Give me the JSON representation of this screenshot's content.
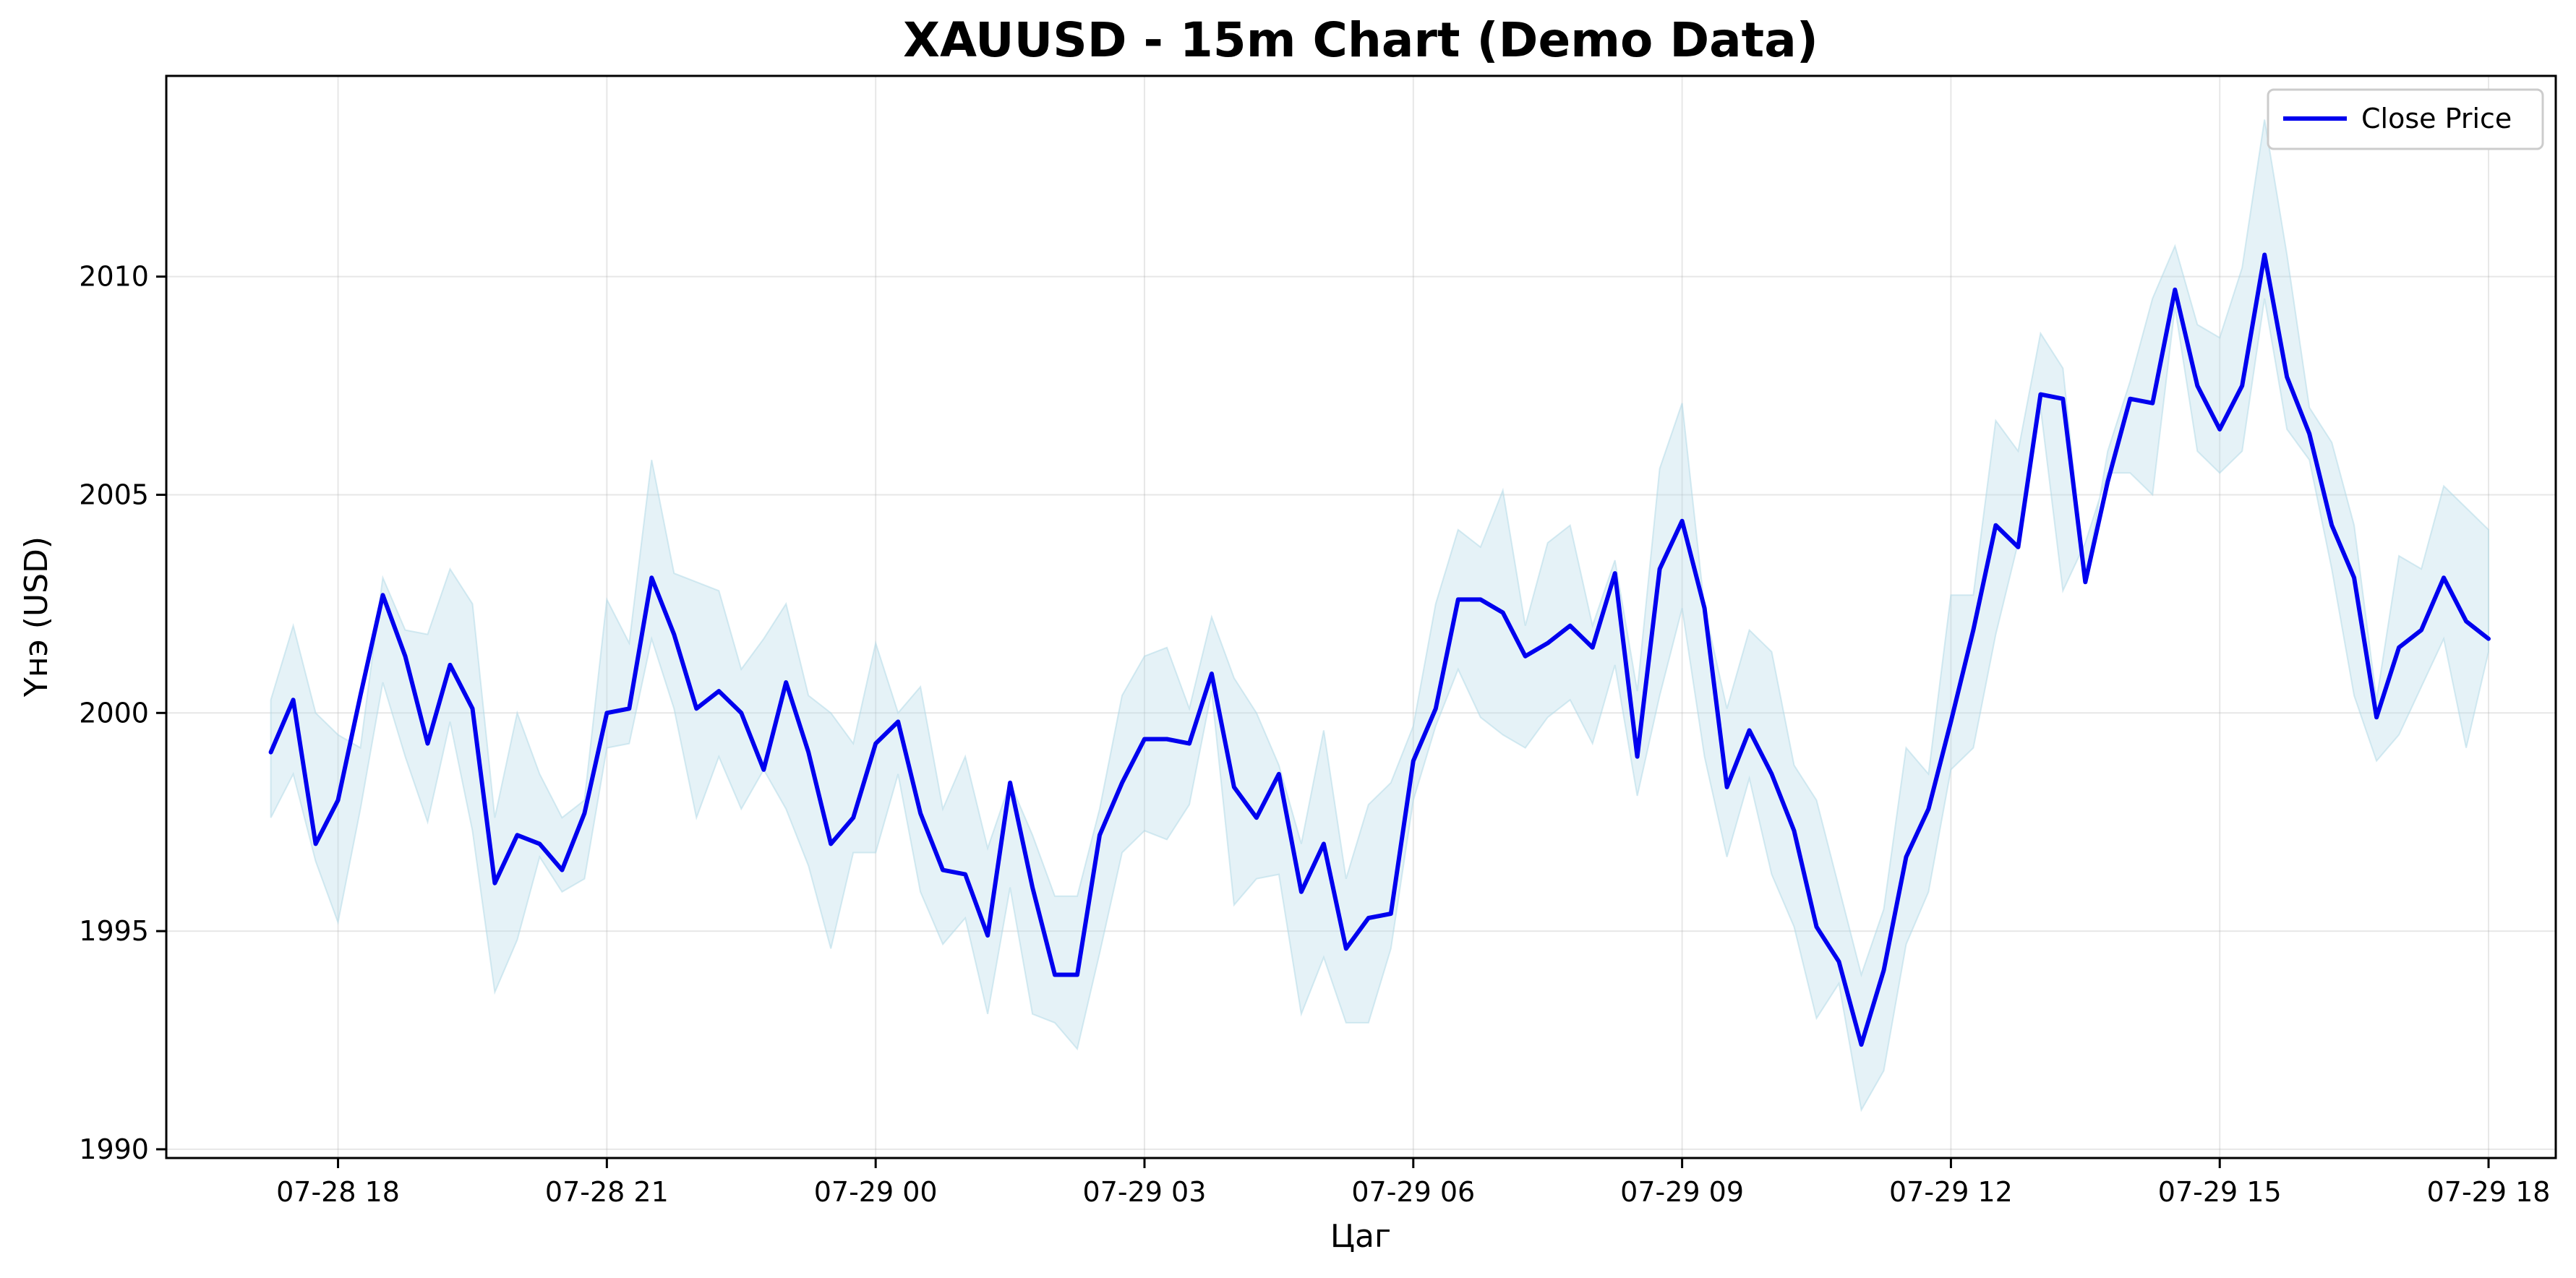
{
  "chart_data": {
    "type": "line",
    "title": "XAUUSD - 15m Chart (Demo Data)",
    "xlabel": "Цаг",
    "ylabel": "Үнэ (USD)",
    "x_ticks": [
      "07-28 18",
      "07-28 21",
      "07-29 00",
      "07-29 03",
      "07-29 06",
      "07-29 09",
      "07-29 12",
      "07-29 15",
      "07-29 18"
    ],
    "y_ticks": [
      "1990",
      "1995",
      "2000",
      "2005",
      "2010"
    ],
    "x_start": "2025-07-28 17:15",
    "x_interval_minutes": 15,
    "xlim": [
      "2025-07-28 16:05",
      "2025-07-29 18:45"
    ],
    "ylim": [
      1989.8,
      2014.6
    ],
    "grid": true,
    "legend": {
      "position": "upper right",
      "entries": [
        "Close Price"
      ]
    },
    "colors": {
      "line": "#0000ee",
      "band_fill": "#add8e6",
      "band_edge": "#add8e6"
    },
    "series": [
      {
        "name": "Close Price",
        "values": [
          1999.1,
          2000.3,
          1997.0,
          1998.0,
          2000.4,
          2002.7,
          2001.3,
          1999.3,
          2001.1,
          2000.1,
          1996.1,
          1997.2,
          1997.0,
          1996.4,
          1997.7,
          2000.0,
          2000.1,
          2003.1,
          2001.8,
          2000.1,
          2000.5,
          2000.0,
          1998.7,
          2000.7,
          1999.1,
          1997.0,
          1997.6,
          1999.3,
          1999.8,
          1997.7,
          1996.4,
          1996.3,
          1994.9,
          1998.4,
          1996.0,
          1994.0,
          1994.0,
          1997.2,
          1998.4,
          1999.4,
          1999.4,
          1999.3,
          2000.9,
          1998.3,
          1997.6,
          1998.6,
          1995.9,
          1997.0,
          1994.6,
          1995.3,
          1995.4,
          1998.9,
          2000.1,
          2002.6,
          2002.6,
          2002.3,
          2001.3,
          2001.6,
          2002.0,
          2001.5,
          2003.2,
          1999.0,
          2003.3,
          2004.4,
          2002.4,
          1998.3,
          1999.6,
          1998.6,
          1997.3,
          1995.1,
          1994.3,
          1992.4,
          1994.1,
          1996.7,
          1997.8,
          1999.8,
          2001.9,
          2004.3,
          2003.8,
          2007.3,
          2007.2,
          2003.0,
          2005.3,
          2007.2,
          2007.1,
          2009.7,
          2007.5,
          2006.5,
          2007.5,
          2010.5,
          2007.7,
          2006.4,
          2004.3,
          2003.1,
          1999.9,
          2001.5,
          2001.9,
          2003.1,
          2002.1,
          2001.7
        ]
      },
      {
        "name": "High",
        "values": [
          2000.3,
          2002.0,
          2000.0,
          1999.5,
          1999.2,
          2003.1,
          2001.9,
          2001.8,
          2003.3,
          2002.5,
          1997.6,
          2000.0,
          1998.6,
          1997.6,
          1998.0,
          2002.6,
          2001.6,
          2005.8,
          2003.2,
          2003.0,
          2002.8,
          2001.0,
          2001.7,
          2002.5,
          2000.4,
          2000.0,
          1999.3,
          2001.6,
          2000.0,
          2000.6,
          1997.8,
          1999.0,
          1996.9,
          1998.4,
          1997.2,
          1995.8,
          1995.8,
          1997.8,
          2000.4,
          2001.3,
          2001.5,
          2000.1,
          2002.2,
          2000.8,
          2000.0,
          1998.8,
          1997.0,
          1999.6,
          1996.2,
          1997.9,
          1998.4,
          1999.7,
          2002.5,
          2004.2,
          2003.8,
          2005.1,
          2002.0,
          2003.9,
          2004.3,
          2002.0,
          2003.5,
          2000.5,
          2005.6,
          2007.1,
          2002.4,
          2000.1,
          2001.9,
          2001.4,
          1998.8,
          1998.0,
          1996.0,
          1994.0,
          1995.5,
          1999.2,
          1998.6,
          2002.7,
          2002.7,
          2006.7,
          2006.0,
          2008.7,
          2007.9,
          2003.0,
          2006.0,
          2007.6,
          2009.5,
          2010.7,
          2008.9,
          2008.6,
          2010.2,
          2013.6,
          2010.5,
          2007.0,
          2006.2,
          2004.3,
          2000.3,
          2003.6,
          2003.3,
          2005.2,
          2004.7,
          2004.2
        ]
      },
      {
        "name": "Low",
        "values": [
          1997.6,
          1998.6,
          1996.6,
          1995.2,
          1997.8,
          2000.7,
          1999.0,
          1997.5,
          1999.8,
          1997.3,
          1993.6,
          1994.8,
          1996.7,
          1995.9,
          1996.2,
          1999.2,
          1999.3,
          2001.7,
          2000.1,
          1997.6,
          1999.0,
          1997.8,
          1998.7,
          1997.8,
          1996.5,
          1994.6,
          1996.8,
          1996.8,
          1998.6,
          1995.9,
          1994.7,
          1995.3,
          1993.1,
          1996.0,
          1993.1,
          1992.9,
          1992.3,
          1994.5,
          1996.8,
          1997.3,
          1997.1,
          1997.9,
          2000.5,
          1995.6,
          1996.2,
          1996.3,
          1993.1,
          1994.4,
          1992.9,
          1992.9,
          1994.6,
          1998.0,
          1999.7,
          2001.0,
          1999.9,
          1999.5,
          1999.2,
          1999.9,
          2000.3,
          1999.3,
          2001.1,
          1998.1,
          2000.4,
          2002.4,
          1999.0,
          1996.7,
          1998.5,
          1996.3,
          1995.1,
          1993.0,
          1993.8,
          1990.9,
          1991.8,
          1994.7,
          1995.9,
          1998.7,
          1999.2,
          2001.8,
          2003.9,
          2007.0,
          2002.8,
          2003.9,
          2005.5,
          2005.5,
          2005.0,
          2009.3,
          2006.0,
          2005.5,
          2006.0,
          2009.5,
          2006.5,
          2005.8,
          2003.3,
          2000.4,
          1998.9,
          1999.5,
          2000.6,
          2001.7,
          1999.2,
          2001.4
        ]
      }
    ]
  }
}
